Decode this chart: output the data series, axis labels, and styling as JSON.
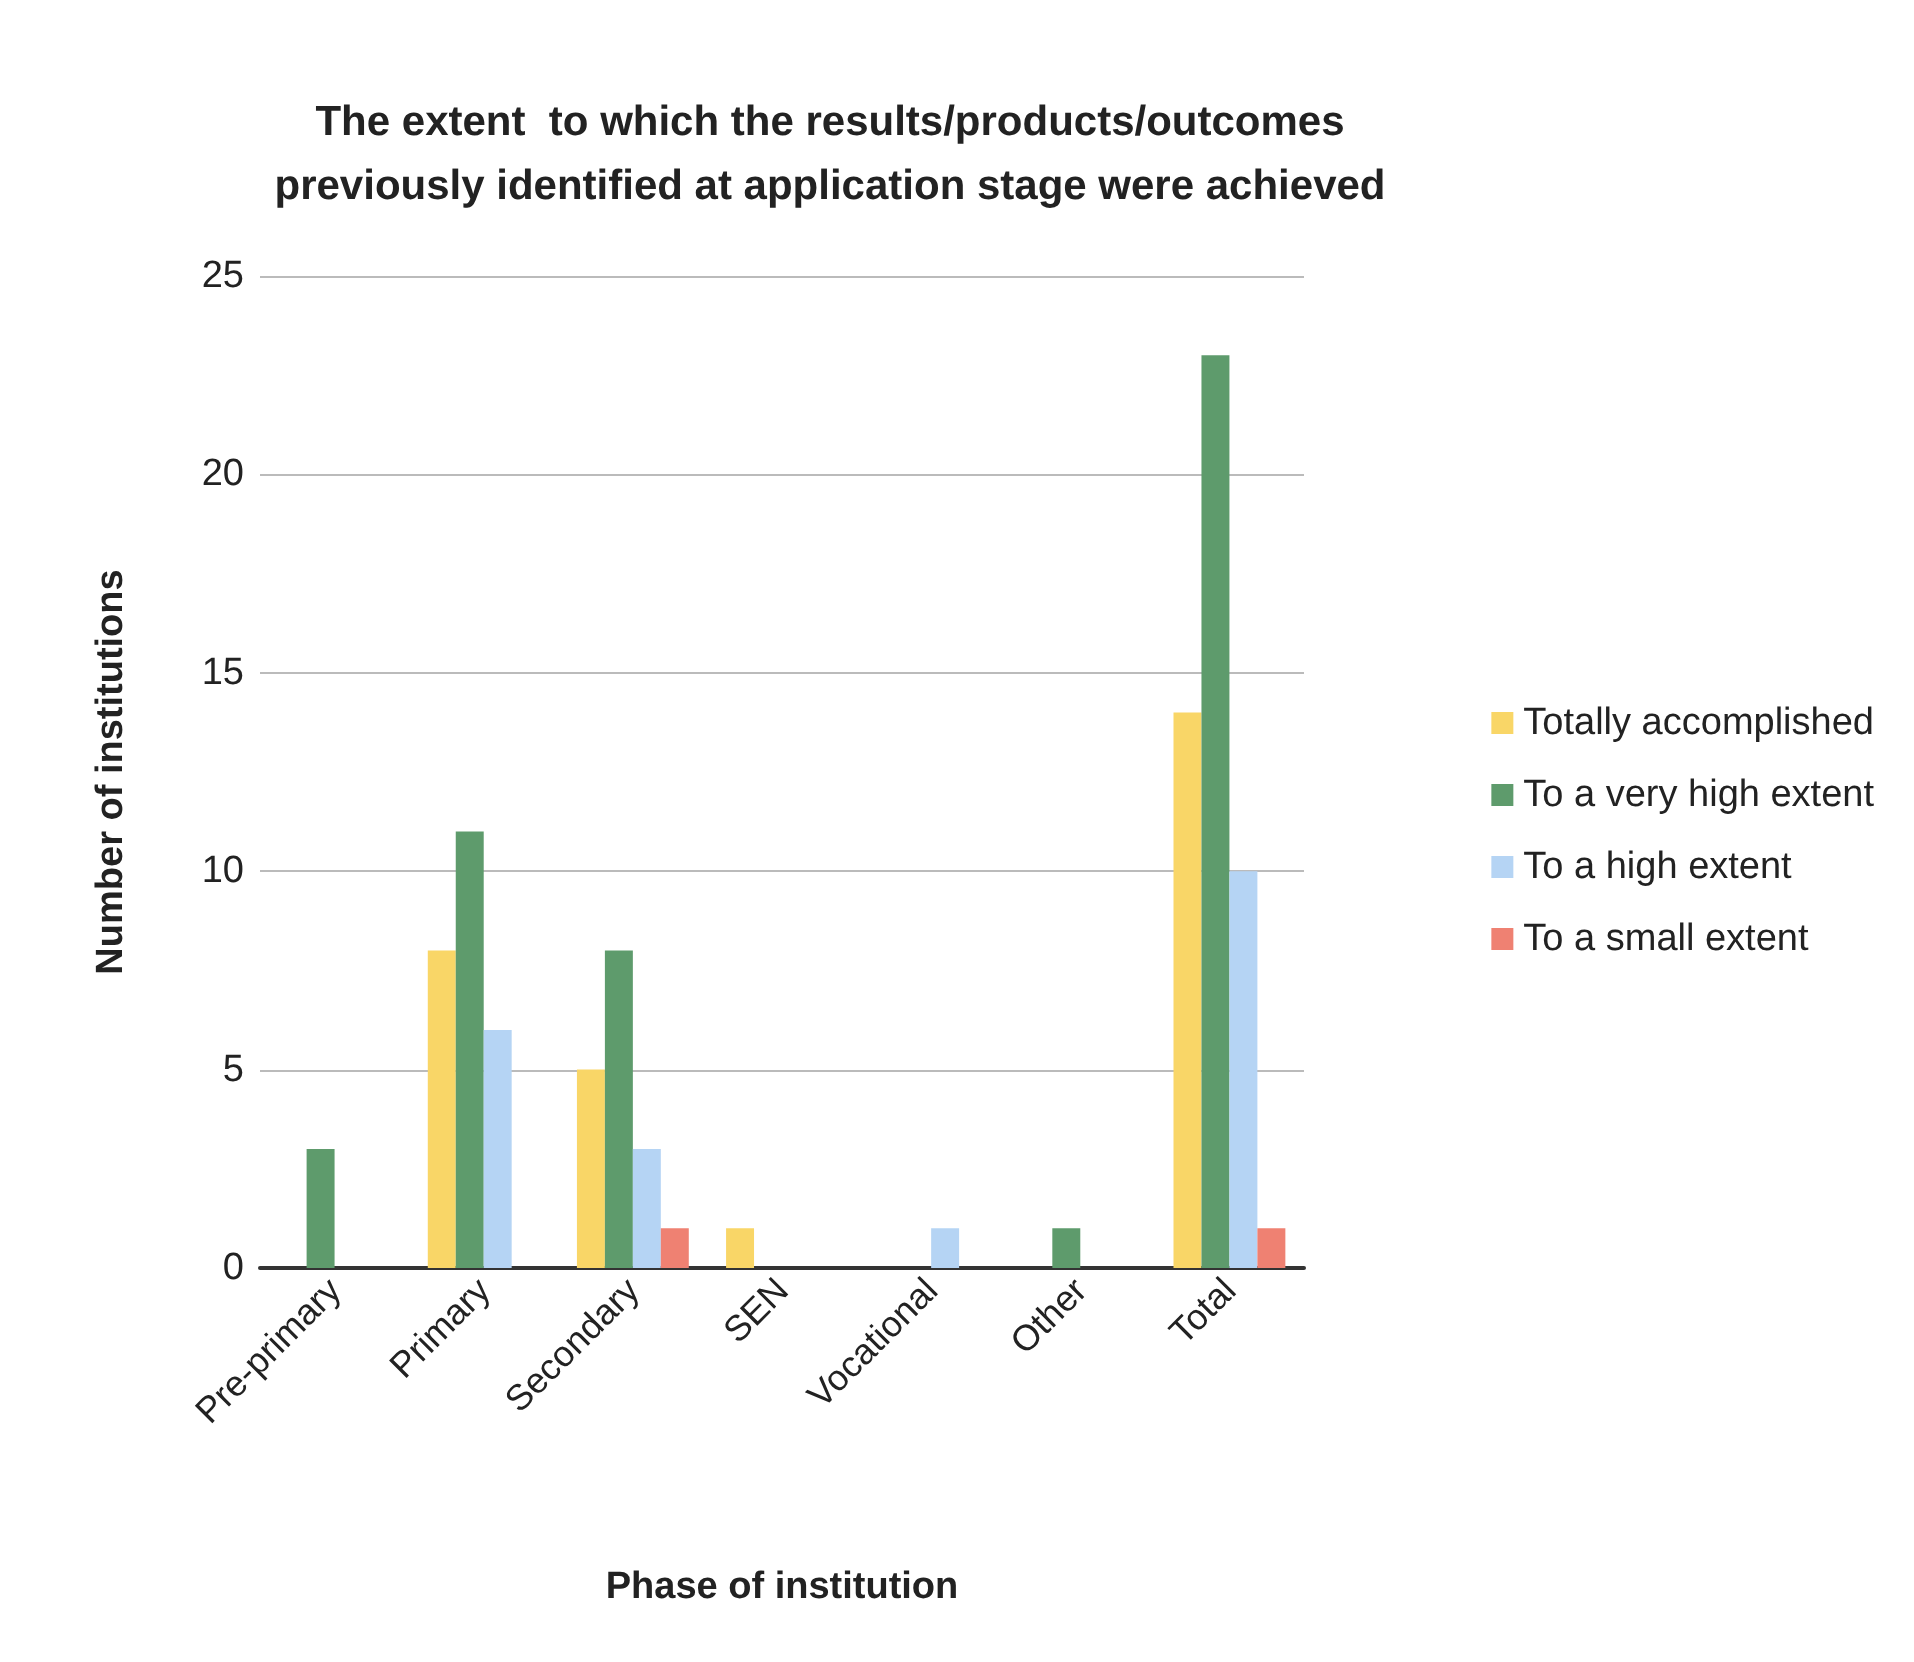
{
  "chart_data": {
    "type": "bar",
    "title": "The extent  to which the results/products/outcomes\npreviously identified at application stage were achieved",
    "xlabel": "Phase of institution",
    "ylabel": "Number of institutions",
    "categories": [
      "Pre-primary",
      "Primary",
      "Secondary",
      "SEN",
      "Vocational",
      "Other",
      "Total"
    ],
    "series": [
      {
        "name": "Totally accomplished",
        "color": "#f9d667",
        "values": [
          0,
          8,
          5,
          1,
          0,
          0,
          14
        ]
      },
      {
        "name": "To a very high extent",
        "color": "#5e9b6c",
        "values": [
          3,
          11,
          8,
          0,
          0,
          1,
          23
        ]
      },
      {
        "name": "To a high extent",
        "color": "#b5d4f4",
        "values": [
          0,
          6,
          3,
          0,
          1,
          0,
          10
        ]
      },
      {
        "name": "To a small extent",
        "color": "#ef8172",
        "values": [
          0,
          0,
          1,
          0,
          0,
          0,
          1
        ]
      }
    ],
    "ylim": [
      0,
      25
    ],
    "yticks": [
      0,
      5,
      10,
      15,
      20,
      25
    ],
    "grid": "y",
    "legend": "right"
  }
}
